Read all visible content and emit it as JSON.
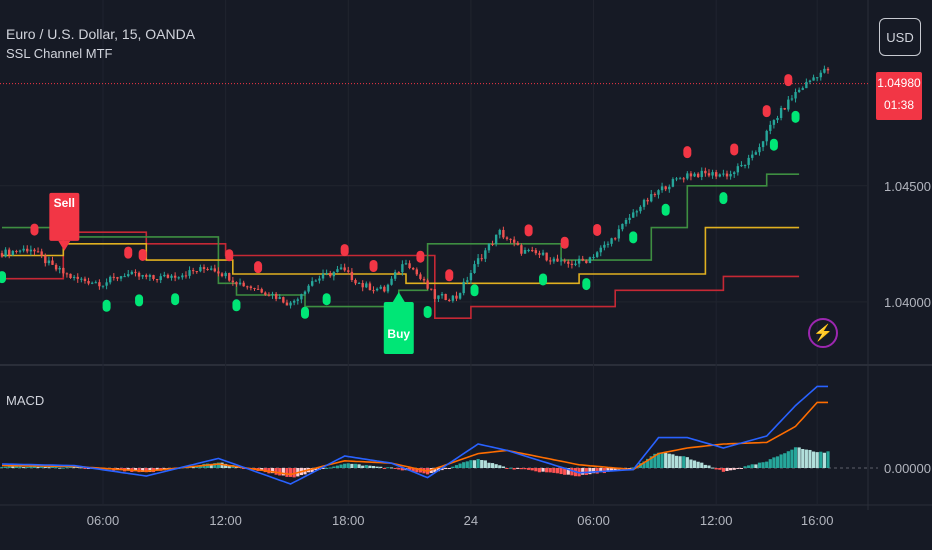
{
  "header": {
    "title": "Euro / U.S. Dollar, 15, OANDA",
    "indicator": "SSL Channel MTF"
  },
  "currency_button": "USD",
  "price_label": {
    "price": "1.04980",
    "countdown": "01:38"
  },
  "macd_label": "MACD",
  "signals": {
    "sell_label": "Sell",
    "buy_label": "Buy"
  },
  "alert_icon": "lightning-bolt-icon",
  "colors": {
    "bg": "#161a25",
    "up": "#26a69a",
    "down": "#ef5350",
    "green": "#2e7d32",
    "red": "#c62828",
    "yellow": "#e0b020",
    "macd": "#2962ff",
    "signal": "#ff6d00",
    "buy": "#00e676",
    "sell": "#f23645"
  },
  "chart_data": [
    {
      "type": "line",
      "name": "price",
      "y_ticks": [
        "1.04500",
        "1.04000"
      ],
      "y_tick_values": [
        1.045,
        1.04
      ],
      "ylim": [
        1.0375,
        1.0505
      ],
      "x_ticks": [
        "06:00",
        "12:00",
        "18:00",
        "24",
        "06:00",
        "12:00",
        "16:00"
      ],
      "x_tick_index": [
        28,
        62,
        96,
        130,
        164,
        198,
        226
      ],
      "n_bars": 230,
      "close_keypoints": [
        [
          0,
          1.0421
        ],
        [
          8,
          1.0423
        ],
        [
          14,
          1.0415
        ],
        [
          20,
          1.041
        ],
        [
          28,
          1.0408
        ],
        [
          34,
          1.0412
        ],
        [
          42,
          1.041
        ],
        [
          50,
          1.0412
        ],
        [
          58,
          1.0415
        ],
        [
          66,
          1.0408
        ],
        [
          74,
          1.0404
        ],
        [
          80,
          1.0399
        ],
        [
          86,
          1.0409
        ],
        [
          94,
          1.0414
        ],
        [
          100,
          1.0407
        ],
        [
          106,
          1.0405
        ],
        [
          112,
          1.0418
        ],
        [
          120,
          1.0402
        ],
        [
          126,
          1.0402
        ],
        [
          132,
          1.0418
        ],
        [
          138,
          1.043
        ],
        [
          144,
          1.0422
        ],
        [
          150,
          1.042
        ],
        [
          156,
          1.0416
        ],
        [
          162,
          1.0418
        ],
        [
          168,
          1.0425
        ],
        [
          176,
          1.044
        ],
        [
          184,
          1.045
        ],
        [
          190,
          1.0455
        ],
        [
          196,
          1.0455
        ],
        [
          202,
          1.0455
        ],
        [
          208,
          1.0462
        ],
        [
          214,
          1.0478
        ],
        [
          220,
          1.049
        ],
        [
          226,
          1.0498
        ],
        [
          229,
          1.05
        ]
      ],
      "ssl_green": [
        [
          0,
          1.0432
        ],
        [
          17,
          1.0432
        ],
        [
          17,
          1.0428
        ],
        [
          60,
          1.0428
        ],
        [
          60,
          1.0408
        ],
        [
          65,
          1.0408
        ],
        [
          65,
          1.0403
        ],
        [
          84,
          1.0403
        ],
        [
          84,
          1.0398
        ],
        [
          110,
          1.0398
        ],
        [
          110,
          1.0405
        ],
        [
          118,
          1.0405
        ],
        [
          118,
          1.0425
        ],
        [
          155,
          1.0425
        ],
        [
          155,
          1.0418
        ],
        [
          180,
          1.0418
        ],
        [
          180,
          1.0432
        ],
        [
          190,
          1.0432
        ],
        [
          190,
          1.045
        ],
        [
          212,
          1.045
        ],
        [
          212,
          1.0455
        ],
        [
          221,
          1.0455
        ]
      ],
      "ssl_red": [
        [
          0,
          1.041
        ],
        [
          17,
          1.041
        ],
        [
          17,
          1.043
        ],
        [
          40,
          1.043
        ],
        [
          40,
          1.0425
        ],
        [
          62,
          1.0425
        ],
        [
          62,
          1.042
        ],
        [
          120,
          1.042
        ],
        [
          120,
          1.0393
        ],
        [
          130,
          1.0393
        ],
        [
          130,
          1.0398
        ],
        [
          170,
          1.0398
        ],
        [
          170,
          1.0405
        ],
        [
          200,
          1.0405
        ],
        [
          200,
          1.0411
        ],
        [
          221,
          1.0411
        ]
      ],
      "ssl_yellow": [
        [
          0,
          1.042
        ],
        [
          17,
          1.042
        ],
        [
          17,
          1.0425
        ],
        [
          40,
          1.0425
        ],
        [
          40,
          1.0418
        ],
        [
          64,
          1.0418
        ],
        [
          64,
          1.0412
        ],
        [
          112,
          1.0412
        ],
        [
          112,
          1.0408
        ],
        [
          160,
          1.0408
        ],
        [
          160,
          1.0412
        ],
        [
          195,
          1.0412
        ],
        [
          195,
          1.0432
        ],
        [
          221,
          1.0432
        ]
      ],
      "sell_signal_index": 17,
      "buy_signal_index": 110,
      "sell_dots": [
        9,
        35,
        39,
        63,
        71,
        95,
        103,
        116,
        124,
        146,
        156,
        165,
        190,
        203,
        212,
        218
      ],
      "buy_dots": [
        0,
        29,
        38,
        48,
        65,
        84,
        90,
        118,
        131,
        150,
        162,
        175,
        184,
        200,
        214,
        220
      ]
    },
    {
      "type": "bar",
      "name": "MACD",
      "y_ticks": [
        "0.00000"
      ],
      "y_tick_values": [
        0
      ],
      "ylim": [
        -0.0004,
        0.0012
      ],
      "macd_keypoints": [
        [
          0,
          5e-05
        ],
        [
          20,
          3e-05
        ],
        [
          40,
          -0.0001
        ],
        [
          60,
          0.00012
        ],
        [
          80,
          -0.0002
        ],
        [
          95,
          0.00015
        ],
        [
          108,
          6e-05
        ],
        [
          118,
          -0.00012
        ],
        [
          132,
          0.0003
        ],
        [
          140,
          0.00022
        ],
        [
          160,
          -6e-05
        ],
        [
          175,
          -2e-05
        ],
        [
          182,
          0.00038
        ],
        [
          190,
          0.00038
        ],
        [
          200,
          0.00025
        ],
        [
          212,
          0.0004
        ],
        [
          220,
          0.00078
        ],
        [
          226,
          0.00102
        ]
      ],
      "signal_keypoints": [
        [
          0,
          3e-05
        ],
        [
          20,
          2e-05
        ],
        [
          40,
          -4e-05
        ],
        [
          60,
          5e-05
        ],
        [
          80,
          -8e-05
        ],
        [
          95,
          9e-05
        ],
        [
          108,
          6e-05
        ],
        [
          118,
          -4e-05
        ],
        [
          132,
          0.00018
        ],
        [
          140,
          0.00022
        ],
        [
          160,
          4e-05
        ],
        [
          175,
          -2e-05
        ],
        [
          182,
          0.00018
        ],
        [
          190,
          0.00025
        ],
        [
          200,
          0.0003
        ],
        [
          212,
          0.00032
        ],
        [
          220,
          0.00052
        ],
        [
          226,
          0.00082
        ]
      ]
    }
  ]
}
